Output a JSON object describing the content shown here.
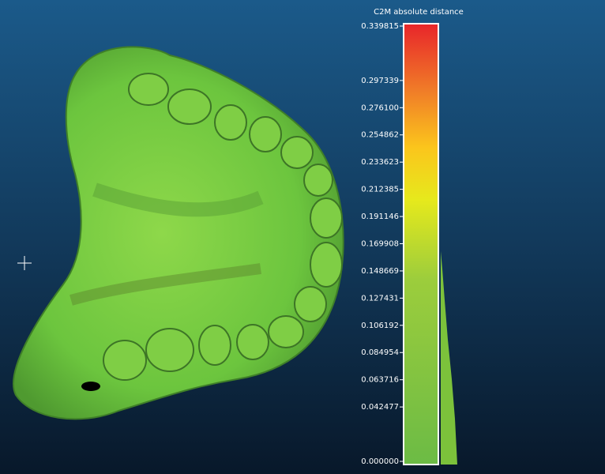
{
  "scale": {
    "title": "C2M absolute distance",
    "range": [
      0,
      0.339815
    ],
    "ticks": [
      {
        "value": 0.339815,
        "label": "0.339815"
      },
      {
        "value": 0.297339,
        "label": "0.297339"
      },
      {
        "value": 0.2761,
        "label": "0.276100"
      },
      {
        "value": 0.254862,
        "label": "0.254862"
      },
      {
        "value": 0.233623,
        "label": "0.233623"
      },
      {
        "value": 0.212385,
        "label": "0.212385"
      },
      {
        "value": 0.191146,
        "label": "0.191146"
      },
      {
        "value": 0.169908,
        "label": "0.169908"
      },
      {
        "value": 0.148669,
        "label": "0.148669"
      },
      {
        "value": 0.127431,
        "label": "0.127431"
      },
      {
        "value": 0.106192,
        "label": "0.106192"
      },
      {
        "value": 0.084954,
        "label": "0.084954"
      },
      {
        "value": 0.063716,
        "label": "0.063716"
      },
      {
        "value": 0.042477,
        "label": "0.042477"
      },
      {
        "value": 0,
        "label": "0.000000"
      }
    ]
  }
}
